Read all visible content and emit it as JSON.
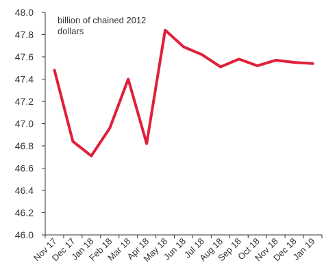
{
  "chart_data": {
    "type": "line",
    "unit_label_lines": [
      "billion of chained 2012",
      "dollars"
    ],
    "categories": [
      "Nov 17",
      "Dec 17",
      "Jan 18",
      "Feb 18",
      "Mar 18",
      "Apr 18",
      "May 18",
      "Jun 18",
      "Jul 18",
      "Aug 18",
      "Sep 18",
      "Oct 18",
      "Nov 18",
      "Dec 18",
      "Jan 19"
    ],
    "series": [
      {
        "values": [
          47.48,
          46.84,
          46.71,
          46.96,
          47.4,
          46.82,
          47.84,
          47.69,
          47.62,
          47.51,
          47.58,
          47.52,
          47.57,
          47.55,
          47.54
        ]
      }
    ],
    "ylim": [
      46.0,
      48.0
    ],
    "yticks": [
      "46.0",
      "46.2",
      "46.4",
      "46.6",
      "46.8",
      "47.0",
      "47.2",
      "47.4",
      "47.6",
      "47.8",
      "48.0"
    ],
    "line_color": "#e0203b",
    "axis_color": "#333333",
    "grid": false
  }
}
